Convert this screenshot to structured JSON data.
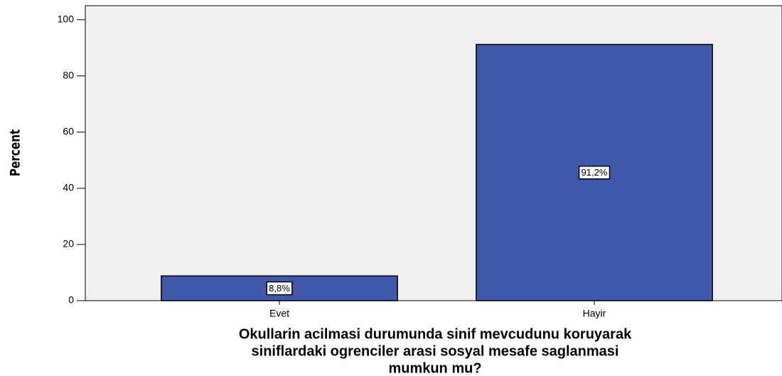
{
  "chart_data": {
    "type": "bar",
    "categories": [
      "Evet",
      "Hayir"
    ],
    "values": [
      8.8,
      91.2
    ],
    "value_labels": [
      "8,8%",
      "91,2%"
    ],
    "color": "#3f58a9",
    "ylabel": "Percent",
    "xlabel": [
      "Okullarin acilmasi durumunda sinif mevcudunu koruyarak",
      "siniflardaki ogrenciler arasi sosyal mesafe saglanmasi",
      "mumkun mu?"
    ],
    "ylim": [
      0,
      105
    ],
    "yticks": [
      0,
      20,
      40,
      60,
      80,
      100
    ]
  }
}
